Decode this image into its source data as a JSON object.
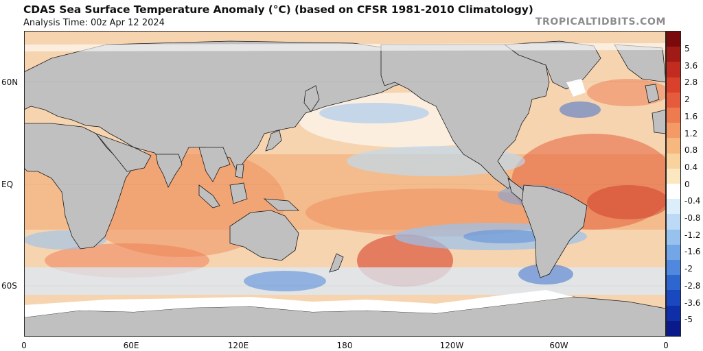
{
  "header": {
    "title": "CDAS Sea Surface Temperature Anomaly (°C) (based on CFSR 1981-2010 Climatology)",
    "analysis_time": "Analysis Time: 00z Apr 12 2024",
    "brand": "TROPICALTIDBITS.COM"
  },
  "map": {
    "lat_labels": [
      "60N",
      "EQ",
      "60S"
    ],
    "lon_labels": [
      "0",
      "60E",
      "120E",
      "180",
      "120W",
      "60W",
      "0"
    ],
    "colors": {
      "land": "#c0c0c0",
      "land_border": "#1a1a1a",
      "sea_ice": "#ffffff"
    }
  },
  "colorbar": {
    "labels": [
      "5",
      "3.6",
      "2.8",
      "2",
      "1.6",
      "1.2",
      "0.8",
      "0.4",
      "0",
      "-0.4",
      "-0.8",
      "-1.2",
      "-1.6",
      "-2",
      "-2.8",
      "-3.6",
      "-5"
    ],
    "colors": [
      "#7a0a0c",
      "#a01a16",
      "#c22b20",
      "#d9412c",
      "#e55c3c",
      "#ee7a50",
      "#f39a66",
      "#f7b880",
      "#f9d39e",
      "#fbe8c0",
      "#ffffff",
      "#ddeefb",
      "#bcdaf5",
      "#98c2ee",
      "#72a6e6",
      "#4f88dc",
      "#2e66cf",
      "#1a48bf",
      "#0e2fa8",
      "#0a1a8a"
    ]
  }
}
